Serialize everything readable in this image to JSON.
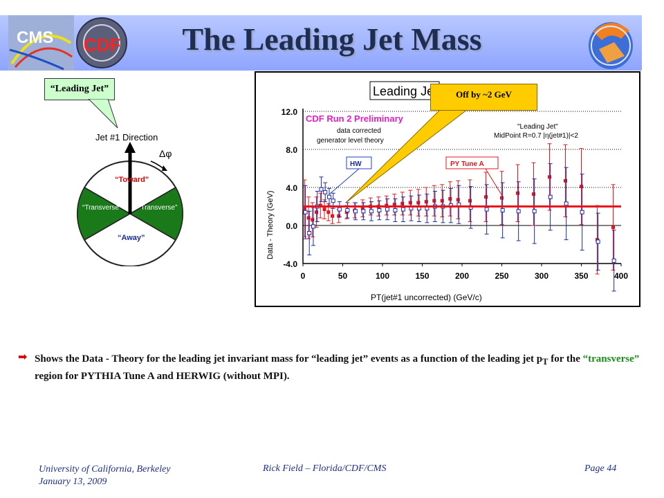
{
  "title": "The Leading Jet Mass",
  "logos": {
    "cms": "CMS",
    "cdf": "CDF"
  },
  "diagram": {
    "callout": "“Leading Jet”",
    "direction_label": "Jet #1 Direction",
    "delta_phi": "Δφ",
    "regions": {
      "toward": "“Toward”",
      "transverse_left": "“Transverse”",
      "transverse_right": "“Transverse”",
      "away": "“Away”"
    }
  },
  "callout_off": "Off by ~2 GeV",
  "chart_data": {
    "type": "scatter",
    "title": "Leading Je",
    "xlabel": "PT(jet#1 uncorrected)  (GeV/c)",
    "ylabel": "Data - Theory (GeV)",
    "xlim": [
      0,
      400
    ],
    "ylim": [
      -4,
      12
    ],
    "x_ticks": [
      "0",
      "50",
      "100",
      "150",
      "200",
      "250",
      "300",
      "350",
      "400"
    ],
    "y_ticks": [
      "-4.0",
      "0.0",
      "4.0",
      "8.0",
      "12.0"
    ],
    "annotations": {
      "preliminary": "CDF Run 2 Preliminary",
      "corrected": "data corrected",
      "generator": "generator level theory",
      "leading_jet": "\"Leading Jet\"",
      "midpoint": "MidPoint R=0.7 |η(jet#1)|<2",
      "hw_label": "HW",
      "py_label": "PY Tune A"
    },
    "fit_line_y": 2.0,
    "series": [
      {
        "name": "PY Tune A",
        "color": "#e8141c",
        "points": [
          {
            "x": 2,
            "y": 1.8,
            "err": 3.0
          },
          {
            "x": 7,
            "y": 0.8,
            "err": 2.2
          },
          {
            "x": 12,
            "y": 0.6,
            "err": 1.8
          },
          {
            "x": 17,
            "y": 1.4,
            "err": 1.6
          },
          {
            "x": 22,
            "y": 2.1,
            "err": 1.3
          },
          {
            "x": 27,
            "y": 1.7,
            "err": 1.0
          },
          {
            "x": 32,
            "y": 1.4,
            "err": 0.9
          },
          {
            "x": 37,
            "y": 1.0,
            "err": 0.8
          },
          {
            "x": 45,
            "y": 1.0,
            "err": 0.7
          },
          {
            "x": 55,
            "y": 1.4,
            "err": 0.7
          },
          {
            "x": 65,
            "y": 1.6,
            "err": 0.8
          },
          {
            "x": 75,
            "y": 1.8,
            "err": 0.9
          },
          {
            "x": 85,
            "y": 2.0,
            "err": 0.9
          },
          {
            "x": 95,
            "y": 2.0,
            "err": 1.0
          },
          {
            "x": 105,
            "y": 2.1,
            "err": 1.0
          },
          {
            "x": 115,
            "y": 2.2,
            "err": 1.1
          },
          {
            "x": 125,
            "y": 2.3,
            "err": 1.2
          },
          {
            "x": 135,
            "y": 2.4,
            "err": 1.3
          },
          {
            "x": 145,
            "y": 2.4,
            "err": 1.4
          },
          {
            "x": 155,
            "y": 2.5,
            "err": 1.5
          },
          {
            "x": 165,
            "y": 2.6,
            "err": 1.6
          },
          {
            "x": 175,
            "y": 2.6,
            "err": 1.7
          },
          {
            "x": 185,
            "y": 2.8,
            "err": 1.8
          },
          {
            "x": 195,
            "y": 2.7,
            "err": 2.0
          },
          {
            "x": 210,
            "y": 2.6,
            "err": 2.2
          },
          {
            "x": 230,
            "y": 3.0,
            "err": 2.6
          },
          {
            "x": 250,
            "y": 2.9,
            "err": 2.8
          },
          {
            "x": 270,
            "y": 3.4,
            "err": 3.0
          },
          {
            "x": 290,
            "y": 3.3,
            "err": 3.3
          },
          {
            "x": 310,
            "y": 5.1,
            "err": 3.5
          },
          {
            "x": 330,
            "y": 4.7,
            "err": 3.8
          },
          {
            "x": 350,
            "y": 4.1,
            "err": 4.0
          },
          {
            "x": 370,
            "y": -1.5,
            "err": 3.6
          },
          {
            "x": 390,
            "y": -0.2,
            "err": 4.5
          }
        ]
      },
      {
        "name": "HW",
        "color": "#1a2aa0",
        "points": [
          {
            "x": 3,
            "y": 1.4,
            "err": 2.8
          },
          {
            "x": 8,
            "y": -0.8,
            "err": 2.3
          },
          {
            "x": 13,
            "y": -0.1,
            "err": 2.0
          },
          {
            "x": 18,
            "y": 2.0,
            "err": 1.6
          },
          {
            "x": 23,
            "y": 3.8,
            "err": 1.3
          },
          {
            "x": 28,
            "y": 3.5,
            "err": 1.0
          },
          {
            "x": 33,
            "y": 3.0,
            "err": 0.9
          },
          {
            "x": 38,
            "y": 2.6,
            "err": 0.8
          },
          {
            "x": 46,
            "y": 1.7,
            "err": 0.8
          },
          {
            "x": 56,
            "y": 1.6,
            "err": 0.8
          },
          {
            "x": 66,
            "y": 1.5,
            "err": 0.9
          },
          {
            "x": 76,
            "y": 1.5,
            "err": 0.9
          },
          {
            "x": 86,
            "y": 1.5,
            "err": 1.0
          },
          {
            "x": 96,
            "y": 1.6,
            "err": 1.0
          },
          {
            "x": 106,
            "y": 1.7,
            "err": 1.1
          },
          {
            "x": 116,
            "y": 1.6,
            "err": 1.2
          },
          {
            "x": 126,
            "y": 1.7,
            "err": 1.3
          },
          {
            "x": 136,
            "y": 1.8,
            "err": 1.3
          },
          {
            "x": 146,
            "y": 1.8,
            "err": 1.4
          },
          {
            "x": 156,
            "y": 1.8,
            "err": 1.5
          },
          {
            "x": 166,
            "y": 2.0,
            "err": 1.6
          },
          {
            "x": 176,
            "y": 2.0,
            "err": 1.7
          },
          {
            "x": 186,
            "y": 2.1,
            "err": 1.8
          },
          {
            "x": 196,
            "y": 2.2,
            "err": 2.0
          },
          {
            "x": 211,
            "y": 1.9,
            "err": 2.2
          },
          {
            "x": 231,
            "y": 1.7,
            "err": 2.6
          },
          {
            "x": 251,
            "y": 1.6,
            "err": 2.9
          },
          {
            "x": 271,
            "y": 1.5,
            "err": 3.1
          },
          {
            "x": 291,
            "y": 1.5,
            "err": 3.4
          },
          {
            "x": 311,
            "y": 3.0,
            "err": 3.5
          },
          {
            "x": 331,
            "y": 2.3,
            "err": 3.8
          },
          {
            "x": 351,
            "y": 1.4,
            "err": 4.0
          },
          {
            "x": 371,
            "y": -1.7,
            "err": 3.0
          },
          {
            "x": 391,
            "y": -3.7,
            "err": 3.2
          }
        ]
      }
    ]
  },
  "bullet": {
    "part1": "Shows the Data - Theory for the leading jet invariant mass for “leading jet” events as a function of the leading jet p",
    "sub": "T",
    "part2": " for the ",
    "highlight": "“transverse”",
    "part3": " region for PYTHIA Tune A and HERWIG (without MPI)."
  },
  "footer": {
    "university": "University of California, Berkeley",
    "date": "January 13, 2009",
    "author": "Rick Field – Florida/CDF/CMS",
    "page": "Page 44"
  }
}
